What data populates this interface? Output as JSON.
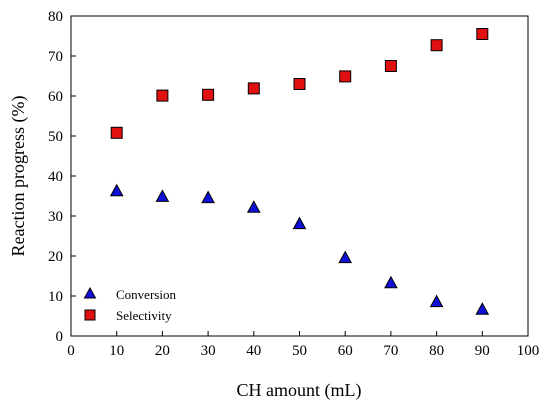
{
  "chart_data": {
    "type": "scatter",
    "title": "",
    "xlabel": "CH amount (mL)",
    "ylabel": "Reaction progress (%)",
    "xlim": [
      0,
      100
    ],
    "ylim": [
      0,
      80
    ],
    "xticks": [
      "0",
      "10",
      "20",
      "30",
      "40",
      "50",
      "60",
      "70",
      "80",
      "90",
      "100"
    ],
    "yticks": [
      "0",
      "10",
      "20",
      "30",
      "40",
      "50",
      "60",
      "70",
      "80"
    ],
    "grid": false,
    "legend_position": "bottom-left",
    "series": [
      {
        "name": "Conversion",
        "marker": "triangle",
        "color": "#1010d8",
        "x": [
          10,
          20,
          30,
          40,
          50,
          60,
          70,
          80,
          90
        ],
        "y": [
          36.3,
          34.9,
          34.6,
          32.2,
          28.1,
          19.6,
          13.3,
          8.6,
          6.7
        ]
      },
      {
        "name": "Selectivity",
        "marker": "square",
        "color": "#e01010",
        "x": [
          10,
          20,
          30,
          40,
          50,
          60,
          70,
          80,
          90
        ],
        "y": [
          50.8,
          60.1,
          60.3,
          61.9,
          63.0,
          64.9,
          67.5,
          72.7,
          75.5
        ]
      }
    ]
  }
}
